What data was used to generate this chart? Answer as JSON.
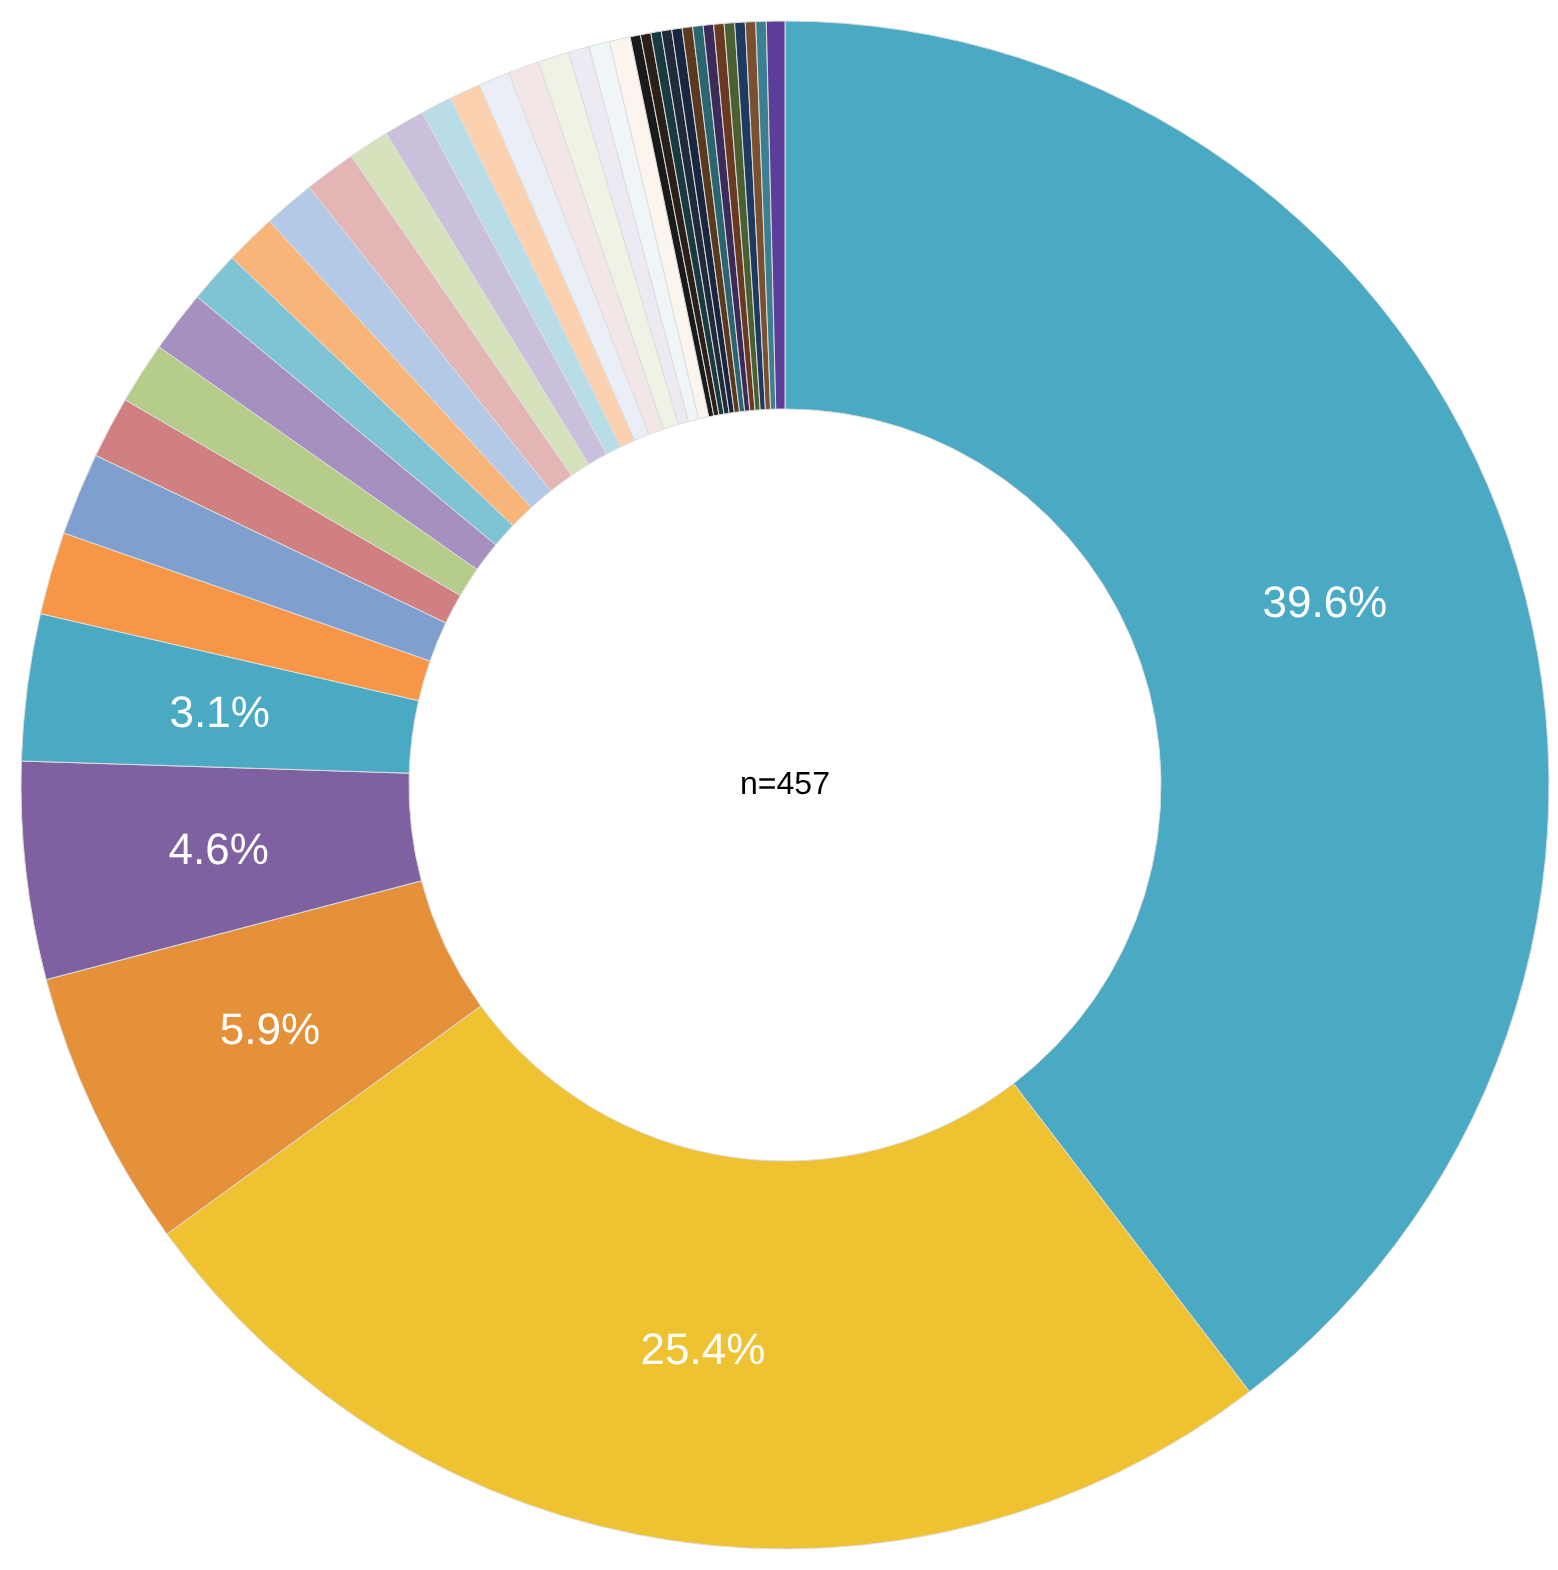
{
  "chart_data": {
    "type": "donut",
    "categories": [
      null,
      null,
      null,
      null,
      null,
      null,
      null,
      null,
      null,
      null,
      null,
      null,
      null,
      null,
      null,
      null,
      null,
      null,
      null,
      null,
      null,
      null,
      null,
      null,
      null,
      null,
      null,
      null,
      null,
      null,
      null,
      null,
      null,
      null,
      null,
      null,
      null,
      null
    ],
    "values": [
      39.6,
      25.4,
      5.9,
      4.6,
      3.1,
      1.75,
      1.75,
      1.31,
      1.31,
      1.31,
      1.09,
      1.09,
      1.09,
      1.09,
      0.87,
      0.87,
      0.66,
      0.66,
      0.66,
      0.66,
      0.66,
      0.44,
      0.44,
      0.44,
      0.22,
      0.22,
      0.22,
      0.22,
      0.22,
      0.22,
      0.22,
      0.22,
      0.22,
      0.22,
      0.22,
      0.22,
      0.22,
      0.39
    ],
    "value_labels": [
      "39.6%",
      "25.4%",
      "5.9%",
      "4.6%",
      "3.1%",
      null,
      null,
      null,
      null,
      null,
      null,
      null,
      null,
      null,
      null,
      null,
      null,
      null,
      null,
      null,
      null,
      null,
      null,
      null,
      null,
      null,
      null,
      null,
      null,
      null,
      null,
      null,
      null,
      null,
      null,
      null,
      null,
      null
    ],
    "colors": [
      "#4aaac4",
      "#efc232",
      "#e4913a",
      "#7f60a0",
      "#4aaac4",
      "#f79646",
      "#7f9fcf",
      "#d08080",
      "#b5cc8a",
      "#a690c0",
      "#7ec4d4",
      "#f9b47a",
      "#b3c9e6",
      "#e4b5b5",
      "#d6e2bc",
      "#cbc0dc",
      "#b8dde6",
      "#fbd1af",
      "#e9eef7",
      "#f3e6e6",
      "#eef3e5",
      "#eeeaf4",
      "#f0f6f8",
      "#fbf5ee",
      "#1a1a1a",
      "#2a2018",
      "#183a40",
      "#1f2a3a",
      "#1a2540",
      "#5a3a1e",
      "#2a6570",
      "#3c2b5a",
      "#6a3a20",
      "#4a6030",
      "#1e3a60",
      "#7a5030",
      "#3a8090",
      "#5c3d9a"
    ],
    "annotations": [
      "n=457"
    ]
  }
}
